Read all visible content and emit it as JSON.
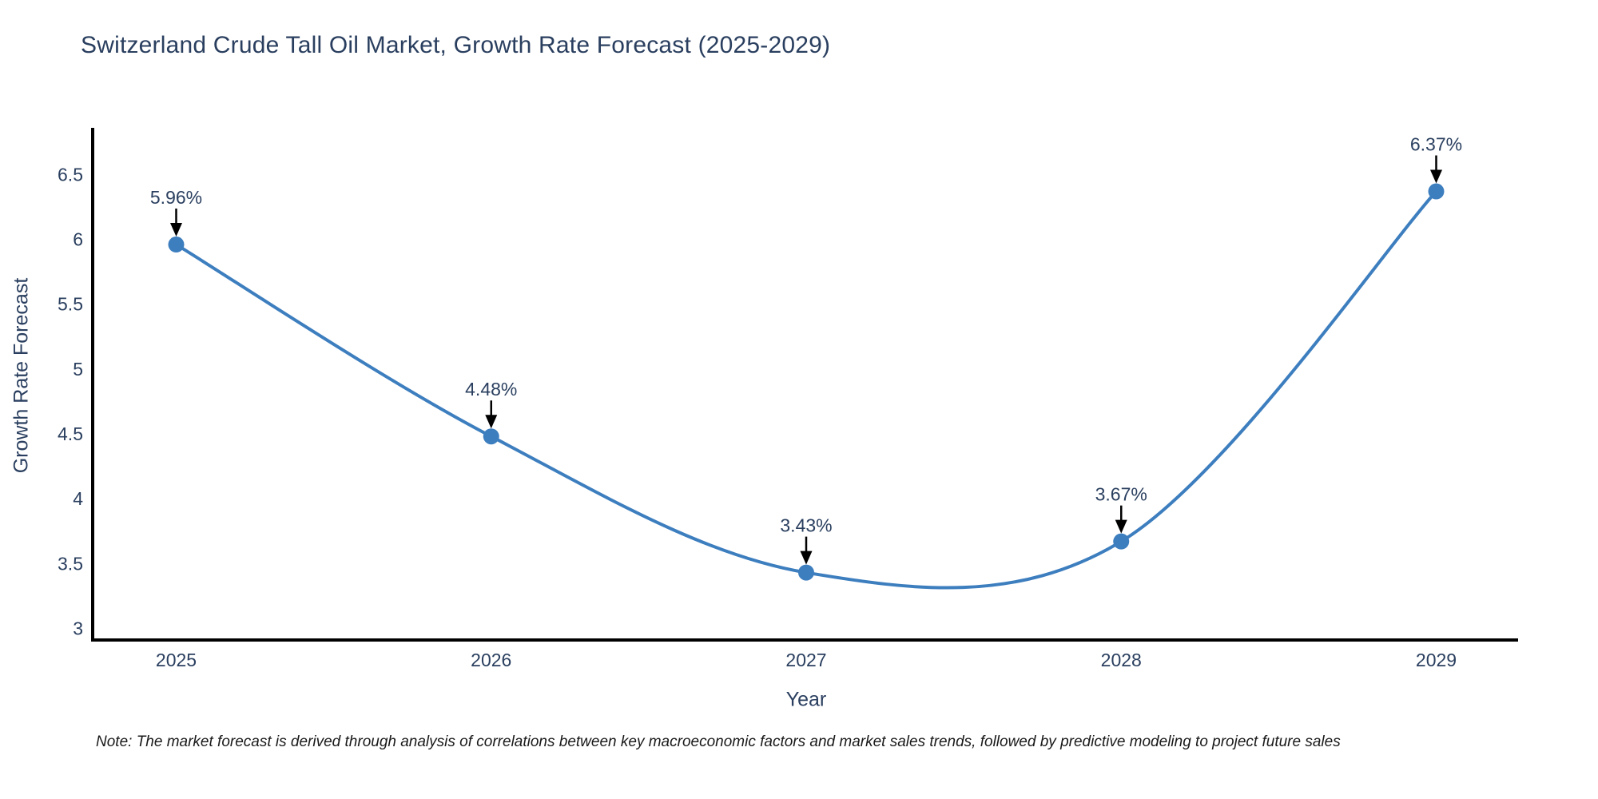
{
  "figure": {
    "note": "Note: The market forecast is derived through analysis of correlations between key macroeconomic factors and market sales trends, followed by predictive modeling to project future sales"
  },
  "chart_data": {
    "type": "line",
    "line_shape": "spline",
    "title": "Switzerland Crude Tall Oil Market, Growth Rate Forecast (2025-2029)",
    "xlabel": "Year",
    "ylabel": "Growth Rate Forecast",
    "x": [
      2025,
      2026,
      2027,
      2028,
      2029
    ],
    "y": [
      5.96,
      4.48,
      3.43,
      3.67,
      6.37
    ],
    "point_labels": [
      "5.96%",
      "4.48%",
      "3.43%",
      "3.67%",
      "6.37%"
    ],
    "xticks": {
      "values": [
        2025,
        2026,
        2027,
        2028,
        2029
      ],
      "labels": [
        "2025",
        "2026",
        "2027",
        "2028",
        "2029"
      ]
    },
    "yticks": {
      "values": [
        3,
        3.5,
        4,
        4.5,
        5,
        5.5,
        6,
        6.5
      ],
      "labels": [
        "3",
        "3.5",
        "4",
        "4.5",
        "5",
        "5.5",
        "6",
        "6.5"
      ]
    },
    "xlim": [
      2024.74,
      2029.26
    ],
    "ylim": [
      2.91,
      6.86
    ],
    "grid": false,
    "legend": false,
    "marker_size": 10,
    "line_width": 4,
    "colors": {
      "line": "#3d7ebf",
      "marker": "#3d7ebf",
      "axis_line": "#000000",
      "tick_text": "#2a3f5f",
      "annotation_text": "#2a3f5f",
      "annotation_arrow": "#000000",
      "background": "#ffffff"
    }
  }
}
